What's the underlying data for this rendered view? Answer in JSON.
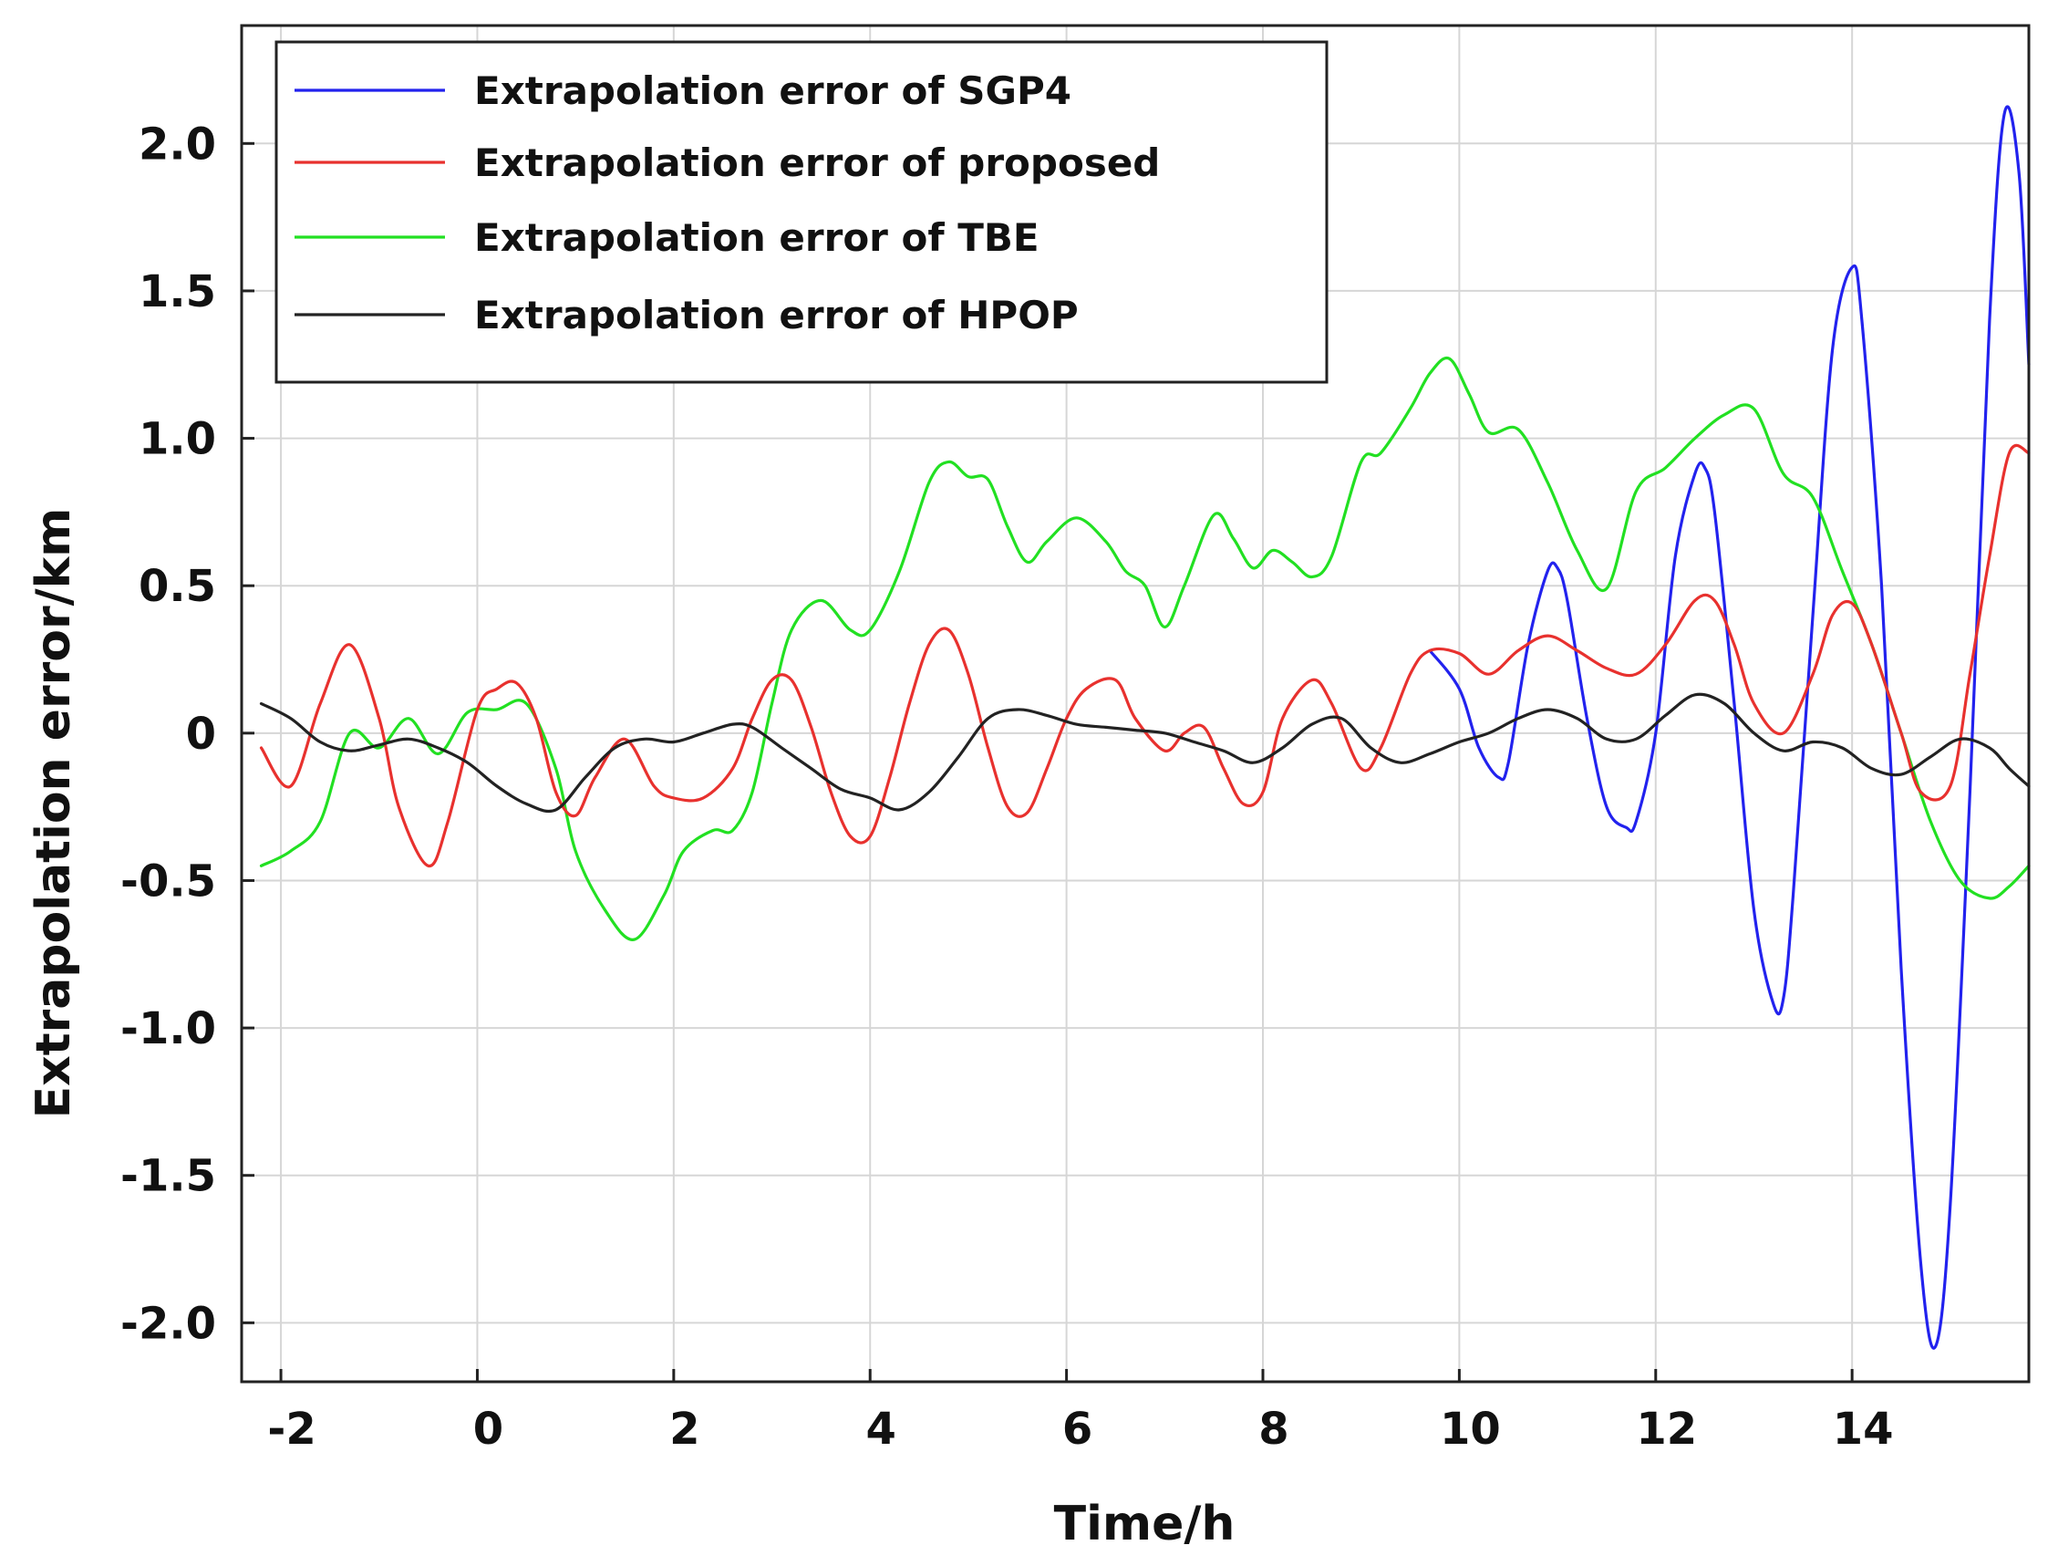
{
  "chart_data": {
    "type": "line",
    "title": "",
    "xlabel": "Time/h",
    "ylabel": "Extrapolation error/km",
    "xlim": [
      -2.4,
      15.8
    ],
    "ylim": [
      -2.2,
      2.4
    ],
    "xticks": [
      -2,
      0,
      2,
      4,
      6,
      8,
      10,
      12,
      14
    ],
    "xtick_labels": [
      "-2",
      "0",
      "2",
      "4",
      "6",
      "8",
      "10",
      "12",
      "14"
    ],
    "yticks": [
      2.0,
      1.5,
      1.0,
      0.5,
      0,
      -0.5,
      -1.0,
      -1.5,
      -2.0
    ],
    "ytick_labels": [
      "2.0",
      "1.5",
      "1.0",
      "0.5",
      "0",
      "-0.5",
      "-1.0",
      "-1.5",
      "-2.0"
    ],
    "grid": true,
    "legend_position": "top-left",
    "series": [
      {
        "name": "Extrapolation error of SGP4",
        "color": "#2222ee",
        "x": [
          9.7,
          10.0,
          10.2,
          10.4,
          10.5,
          10.7,
          10.9,
          11.0,
          11.1,
          11.3,
          11.5,
          11.7,
          11.8,
          12.0,
          12.2,
          12.4,
          12.5,
          12.6,
          12.8,
          13.0,
          13.2,
          13.3,
          13.4,
          13.6,
          13.8,
          14.0,
          14.1,
          14.3,
          14.5,
          14.7,
          14.85,
          15.0,
          15.2,
          15.4,
          15.55,
          15.7,
          15.8
        ],
        "values": [
          0.28,
          0.15,
          -0.05,
          -0.15,
          -0.1,
          0.3,
          0.55,
          0.56,
          0.45,
          0.05,
          -0.25,
          -0.32,
          -0.3,
          0.0,
          0.6,
          0.88,
          0.9,
          0.75,
          0.1,
          -0.6,
          -0.92,
          -0.9,
          -0.55,
          0.4,
          1.3,
          1.58,
          1.4,
          0.5,
          -0.8,
          -1.8,
          -2.08,
          -1.6,
          -0.2,
          1.4,
          2.1,
          1.9,
          1.25
        ]
      },
      {
        "name": "Extrapolation error of proposed",
        "color": "#e8312e",
        "x": [
          -2.2,
          -1.9,
          -1.6,
          -1.3,
          -1.0,
          -0.8,
          -0.5,
          -0.3,
          0.0,
          0.2,
          0.4,
          0.6,
          0.8,
          1.0,
          1.2,
          1.5,
          1.8,
          2.0,
          2.3,
          2.6,
          2.8,
          3.0,
          3.2,
          3.4,
          3.6,
          3.8,
          4.0,
          4.2,
          4.4,
          4.6,
          4.8,
          5.0,
          5.2,
          5.4,
          5.6,
          5.8,
          6.0,
          6.2,
          6.5,
          6.7,
          7.0,
          7.2,
          7.4,
          7.6,
          7.8,
          8.0,
          8.2,
          8.5,
          8.7,
          9.0,
          9.2,
          9.5,
          9.7,
          10.0,
          10.3,
          10.6,
          10.9,
          11.2,
          11.5,
          11.8,
          12.1,
          12.4,
          12.6,
          12.8,
          13.0,
          13.3,
          13.6,
          13.8,
          14.0,
          14.2,
          14.5,
          14.7,
          15.0,
          15.2,
          15.4,
          15.6,
          15.8
        ],
        "values": [
          -0.05,
          -0.18,
          0.1,
          0.3,
          0.05,
          -0.25,
          -0.45,
          -0.3,
          0.08,
          0.15,
          0.17,
          0.05,
          -0.2,
          -0.28,
          -0.15,
          -0.02,
          -0.18,
          -0.22,
          -0.22,
          -0.12,
          0.05,
          0.18,
          0.18,
          0.02,
          -0.2,
          -0.35,
          -0.35,
          -0.15,
          0.1,
          0.3,
          0.35,
          0.2,
          -0.05,
          -0.25,
          -0.27,
          -0.12,
          0.05,
          0.15,
          0.18,
          0.05,
          -0.06,
          0.0,
          0.02,
          -0.12,
          -0.24,
          -0.2,
          0.05,
          0.18,
          0.1,
          -0.12,
          -0.05,
          0.2,
          0.28,
          0.27,
          0.2,
          0.28,
          0.33,
          0.28,
          0.22,
          0.2,
          0.3,
          0.45,
          0.45,
          0.3,
          0.1,
          0.0,
          0.2,
          0.4,
          0.44,
          0.3,
          0.0,
          -0.2,
          -0.18,
          0.2,
          0.6,
          0.95,
          0.95
        ]
      },
      {
        "name": "Extrapolation error of TBE",
        "color": "#22e022",
        "x": [
          -2.2,
          -1.9,
          -1.6,
          -1.3,
          -1.0,
          -0.7,
          -0.4,
          -0.1,
          0.2,
          0.5,
          0.8,
          1.0,
          1.3,
          1.6,
          1.9,
          2.1,
          2.4,
          2.6,
          2.8,
          3.0,
          3.2,
          3.5,
          3.8,
          4.0,
          4.3,
          4.6,
          4.8,
          5.0,
          5.2,
          5.4,
          5.6,
          5.8,
          6.1,
          6.4,
          6.6,
          6.8,
          7.0,
          7.2,
          7.5,
          7.7,
          7.9,
          8.1,
          8.3,
          8.5,
          8.7,
          9.0,
          9.2,
          9.5,
          9.7,
          9.9,
          10.1,
          10.3,
          10.6,
          10.9,
          11.2,
          11.5,
          11.8,
          12.1,
          12.4,
          12.7,
          13.0,
          13.3,
          13.6,
          13.9,
          14.2,
          14.5,
          14.8,
          15.1,
          15.4,
          15.6,
          15.8
        ],
        "values": [
          -0.45,
          -0.4,
          -0.3,
          0.0,
          -0.05,
          0.05,
          -0.07,
          0.07,
          0.08,
          0.1,
          -0.12,
          -0.4,
          -0.6,
          -0.7,
          -0.55,
          -0.4,
          -0.33,
          -0.33,
          -0.2,
          0.1,
          0.35,
          0.45,
          0.35,
          0.35,
          0.55,
          0.85,
          0.92,
          0.87,
          0.86,
          0.7,
          0.58,
          0.65,
          0.73,
          0.65,
          0.55,
          0.5,
          0.36,
          0.5,
          0.74,
          0.66,
          0.56,
          0.62,
          0.58,
          0.53,
          0.6,
          0.92,
          0.95,
          1.1,
          1.22,
          1.27,
          1.15,
          1.02,
          1.03,
          0.85,
          0.62,
          0.49,
          0.82,
          0.9,
          1.0,
          1.08,
          1.1,
          0.88,
          0.8,
          0.55,
          0.3,
          0.0,
          -0.3,
          -0.5,
          -0.56,
          -0.52,
          -0.45
        ]
      },
      {
        "name": "Extrapolation error of HPOP",
        "color": "#222222",
        "x": [
          -2.2,
          -1.9,
          -1.6,
          -1.3,
          -1.0,
          -0.7,
          -0.4,
          -0.1,
          0.2,
          0.5,
          0.8,
          1.1,
          1.4,
          1.7,
          2.0,
          2.3,
          2.6,
          2.8,
          3.1,
          3.4,
          3.7,
          4.0,
          4.3,
          4.6,
          4.9,
          5.2,
          5.5,
          5.8,
          6.1,
          6.4,
          6.7,
          7.0,
          7.3,
          7.6,
          7.9,
          8.2,
          8.5,
          8.8,
          9.1,
          9.4,
          9.7,
          10.0,
          10.3,
          10.6,
          10.9,
          11.2,
          11.5,
          11.8,
          12.1,
          12.4,
          12.7,
          13.0,
          13.3,
          13.6,
          13.9,
          14.2,
          14.5,
          14.8,
          15.1,
          15.4,
          15.6,
          15.8
        ],
        "values": [
          0.1,
          0.05,
          -0.03,
          -0.06,
          -0.04,
          -0.02,
          -0.05,
          -0.1,
          -0.18,
          -0.24,
          -0.26,
          -0.15,
          -0.05,
          -0.02,
          -0.03,
          0.0,
          0.03,
          0.02,
          -0.05,
          -0.12,
          -0.19,
          -0.22,
          -0.26,
          -0.2,
          -0.08,
          0.05,
          0.08,
          0.06,
          0.03,
          0.02,
          0.01,
          0.0,
          -0.03,
          -0.06,
          -0.1,
          -0.05,
          0.03,
          0.05,
          -0.05,
          -0.1,
          -0.07,
          -0.03,
          0.0,
          0.05,
          0.08,
          0.05,
          -0.02,
          -0.02,
          0.06,
          0.13,
          0.1,
          0.0,
          -0.06,
          -0.03,
          -0.05,
          -0.12,
          -0.14,
          -0.08,
          -0.02,
          -0.05,
          -0.12,
          -0.18
        ]
      }
    ]
  }
}
